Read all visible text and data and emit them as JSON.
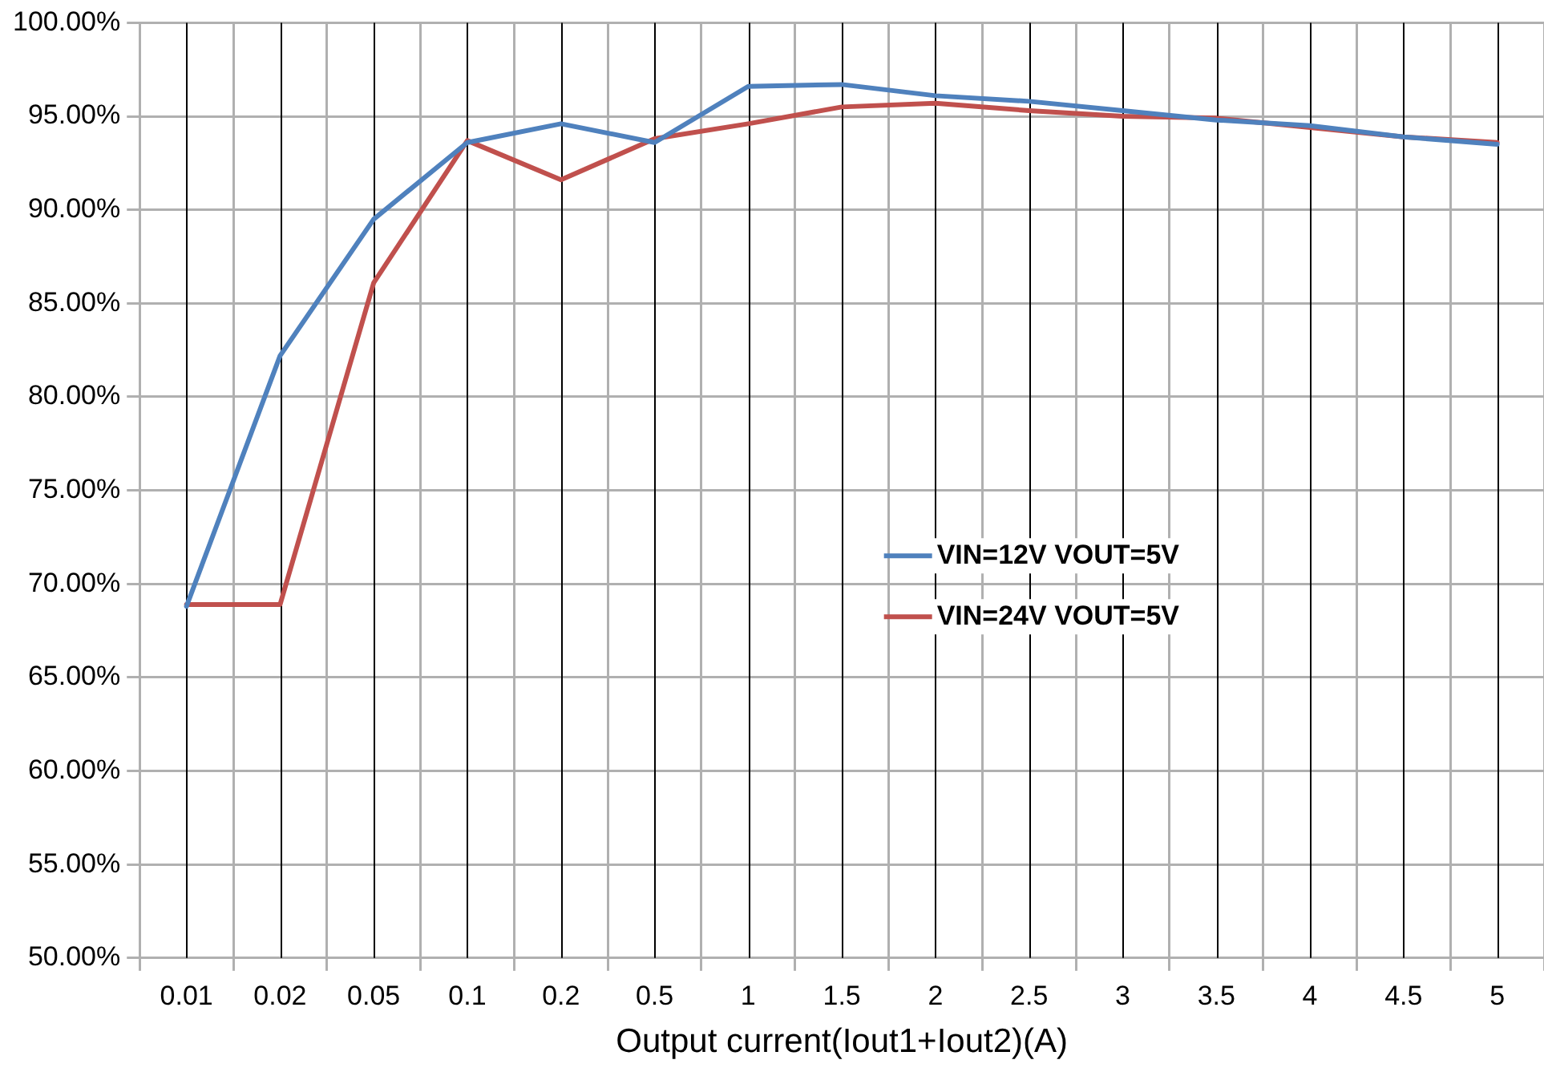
{
  "chart_data": {
    "type": "line",
    "xlabel": "Output current(Iout1+Iout2)(A)",
    "categories": [
      "0.01",
      "0.02",
      "0.05",
      "0.1",
      "0.2",
      "0.5",
      "1",
      "1.5",
      "2",
      "2.5",
      "3",
      "3.5",
      "4",
      "4.5",
      "5"
    ],
    "series": [
      {
        "name": "VIN=12V VOUT=5V",
        "color": "#4f81bd",
        "values": [
          68.8,
          82.2,
          89.5,
          93.6,
          94.6,
          93.6,
          96.6,
          96.7,
          96.1,
          95.8,
          95.3,
          94.8,
          94.5,
          93.9,
          93.5
        ]
      },
      {
        "name": "VIN=24V VOUT=5V",
        "color": "#c0504d",
        "values": [
          68.9,
          68.9,
          86.1,
          93.7,
          91.6,
          93.8,
          94.6,
          95.5,
          95.7,
          95.3,
          95.0,
          94.9,
          94.4,
          93.9,
          93.6
        ]
      }
    ],
    "ylim": [
      50,
      100
    ],
    "yticks": [
      {
        "value": 50,
        "label": "50.00%"
      },
      {
        "value": 55,
        "label": "55.00%"
      },
      {
        "value": 60,
        "label": "60.00%"
      },
      {
        "value": 65,
        "label": "65.00%"
      },
      {
        "value": 70,
        "label": "70.00%"
      },
      {
        "value": 75,
        "label": "75.00%"
      },
      {
        "value": 80,
        "label": "80.00%"
      },
      {
        "value": 85,
        "label": "85.00%"
      },
      {
        "value": 90,
        "label": "90.00%"
      },
      {
        "value": 95,
        "label": "95.00%"
      },
      {
        "value": 100,
        "label": "100.00%"
      }
    ],
    "grid": true,
    "legend": "right",
    "marker": "none",
    "line_style": "solid"
  }
}
